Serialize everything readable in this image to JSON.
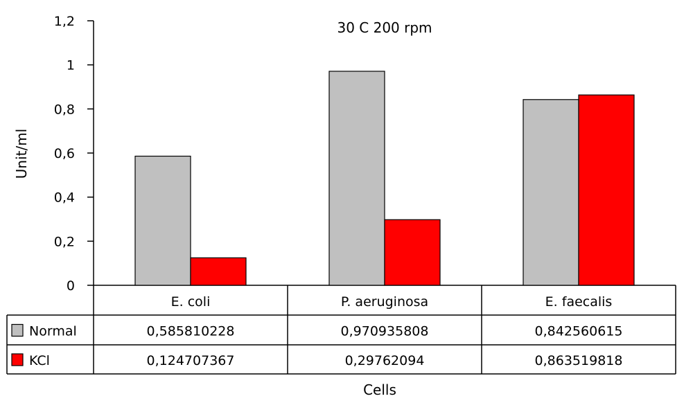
{
  "chart_data": {
    "type": "bar",
    "title": "30 C 200 rpm",
    "xlabel": "Cells",
    "ylabel": "Unit/ml",
    "ylim": [
      0,
      1.2
    ],
    "yticks": [
      0,
      0.2,
      0.4,
      0.6,
      0.8,
      1,
      1.2
    ],
    "ytick_labels": [
      "0",
      "0,2",
      "0,4",
      "0,6",
      "0,8",
      "1",
      "1,2"
    ],
    "categories": [
      "E. coli",
      "P. aeruginosa",
      "E. faecalis"
    ],
    "series": [
      {
        "name": "Normal",
        "color": "#c0c0c0",
        "values": [
          0.585810228,
          0.970935808,
          0.842560615
        ],
        "labels": [
          "0,585810228",
          "0,970935808",
          "0,842560615"
        ]
      },
      {
        "name": "KCl",
        "color": "#ff0000",
        "values": [
          0.124707367,
          0.29762094,
          0.863519818
        ],
        "labels": [
          "0,124707367",
          "0,29762094",
          "0,863519818"
        ]
      }
    ],
    "grid": false,
    "legend": "data-table"
  }
}
